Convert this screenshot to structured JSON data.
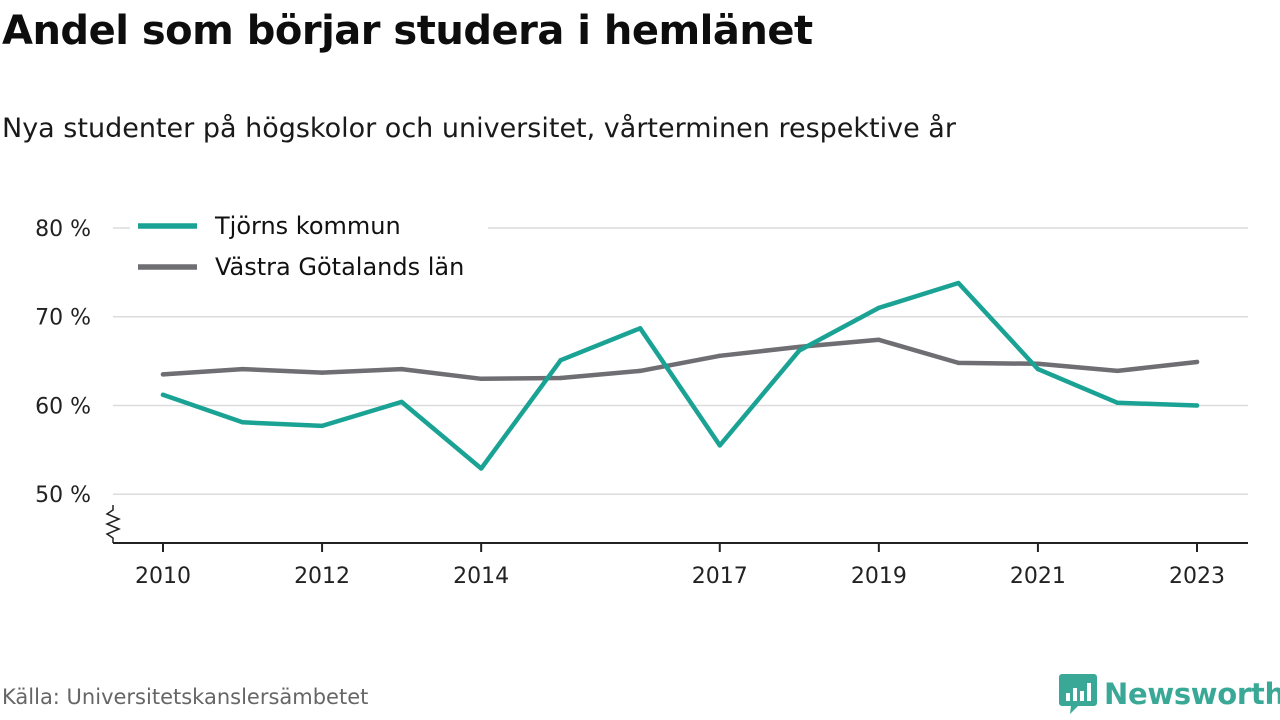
{
  "title": "Andel som börjar studera i hemlänet",
  "subtitle": "Nya studenter på högskolor och universitet, vårterminen respektive år",
  "source": "Källa: Universitetskanslersämbetet",
  "brand": {
    "name": "Newsworthy",
    "icon": "newsworthy-logo-icon",
    "color": "#3aa896"
  },
  "chart_data": {
    "type": "line",
    "x": [
      2010,
      2011,
      2012,
      2013,
      2014,
      2015,
      2016,
      2017,
      2018,
      2019,
      2020,
      2021,
      2022,
      2023
    ],
    "x_ticks": [
      "2010",
      "2012",
      "2014",
      "2017",
      "2019",
      "2021",
      "2023"
    ],
    "y_ticks": [
      "50 %",
      "60 %",
      "70 %",
      "80 %"
    ],
    "ylim": [
      44.5,
      80
    ],
    "y_axis_break": true,
    "grid": true,
    "legend_position": "top-left",
    "series": [
      {
        "name": "Tjörns kommun",
        "color": "#1aa394",
        "values": [
          61.2,
          58.1,
          57.7,
          60.4,
          52.9,
          65.1,
          68.7,
          55.5,
          66.2,
          71.0,
          73.8,
          64.1,
          60.3,
          60.0
        ]
      },
      {
        "name": "Västra Götalands län",
        "color": "#6e6e73",
        "values": [
          63.5,
          64.1,
          63.7,
          64.1,
          63.0,
          63.1,
          63.9,
          65.6,
          66.6,
          67.4,
          64.8,
          64.7,
          63.9,
          64.9
        ]
      }
    ]
  }
}
